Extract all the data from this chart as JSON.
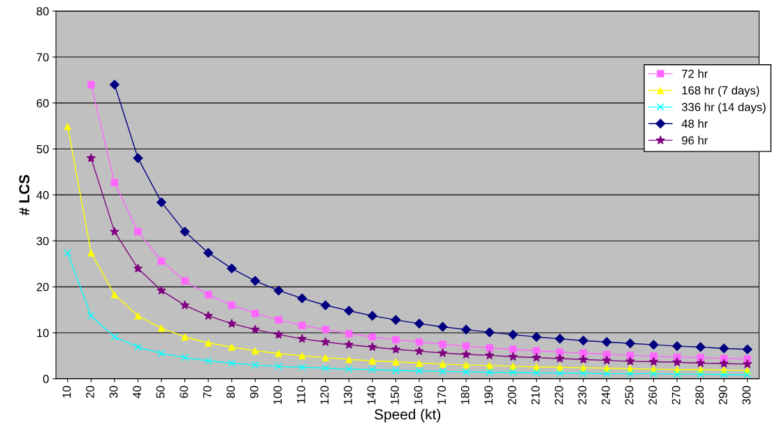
{
  "chart_data": {
    "type": "line",
    "xlabel": "Speed (kt)",
    "ylabel": "# LCS",
    "categories": [
      "10",
      "20",
      "30",
      "40",
      "50",
      "60",
      "70",
      "80",
      "90",
      "100",
      "110",
      "120",
      "130",
      "140",
      "150",
      "160",
      "170",
      "180",
      "190",
      "200",
      "210",
      "220",
      "230",
      "240",
      "250",
      "260",
      "270",
      "280",
      "290",
      "300"
    ],
    "ylim": [
      0,
      80
    ],
    "yticks": [
      0,
      10,
      20,
      30,
      40,
      50,
      60,
      70,
      80
    ],
    "grid": "y",
    "legend": "right",
    "series": [
      {
        "name": "72 hr",
        "color": "#ff66ff",
        "marker": "square",
        "values": [
          null,
          64,
          42.7,
          32,
          25.6,
          21.3,
          18.3,
          16,
          14.2,
          12.8,
          11.6,
          10.7,
          9.8,
          9.1,
          8.5,
          8,
          7.5,
          7.1,
          6.7,
          6.4,
          6.1,
          5.8,
          5.6,
          5.3,
          5.1,
          4.9,
          4.7,
          4.6,
          4.4,
          4.3
        ]
      },
      {
        "name": "168 hr (7 days)",
        "color": "#ffff00",
        "marker": "triangle",
        "values": [
          54.9,
          27.4,
          18.3,
          13.7,
          11,
          9.1,
          7.8,
          6.9,
          6.1,
          5.5,
          5,
          4.6,
          4.2,
          3.9,
          3.7,
          3.4,
          3.2,
          3,
          2.9,
          2.7,
          2.6,
          2.5,
          2.4,
          2.3,
          2.2,
          2.1,
          2,
          2,
          1.9,
          1.8
        ]
      },
      {
        "name": "336 hr (14 days)",
        "color": "#00ffff",
        "marker": "cross",
        "values": [
          27.4,
          13.7,
          9.1,
          6.9,
          5.5,
          4.6,
          3.9,
          3.4,
          3,
          2.7,
          2.5,
          2.3,
          2.1,
          2,
          1.8,
          1.7,
          1.6,
          1.5,
          1.4,
          1.4,
          1.3,
          1.2,
          1.2,
          1.1,
          1.1,
          1.1,
          1,
          1,
          0.9,
          0.9
        ]
      },
      {
        "name": "48 hr",
        "color": "#000080",
        "marker": "diamond",
        "values": [
          null,
          null,
          64,
          48,
          38.4,
          32,
          27.4,
          24,
          21.3,
          19.2,
          17.5,
          16,
          14.8,
          13.7,
          12.8,
          12,
          11.3,
          10.7,
          10.1,
          9.6,
          9.1,
          8.7,
          8.3,
          8,
          7.7,
          7.4,
          7.1,
          6.9,
          6.6,
          6.4
        ]
      },
      {
        "name": "96 hr",
        "color": "#800080",
        "marker": "star",
        "values": [
          null,
          48,
          32,
          24,
          19.2,
          16,
          13.7,
          12,
          10.7,
          9.6,
          8.7,
          8,
          7.4,
          6.9,
          6.4,
          6,
          5.6,
          5.3,
          5.1,
          4.8,
          4.6,
          4.4,
          4.2,
          4,
          3.8,
          3.7,
          3.6,
          3.4,
          3.3,
          3.2
        ]
      }
    ]
  }
}
